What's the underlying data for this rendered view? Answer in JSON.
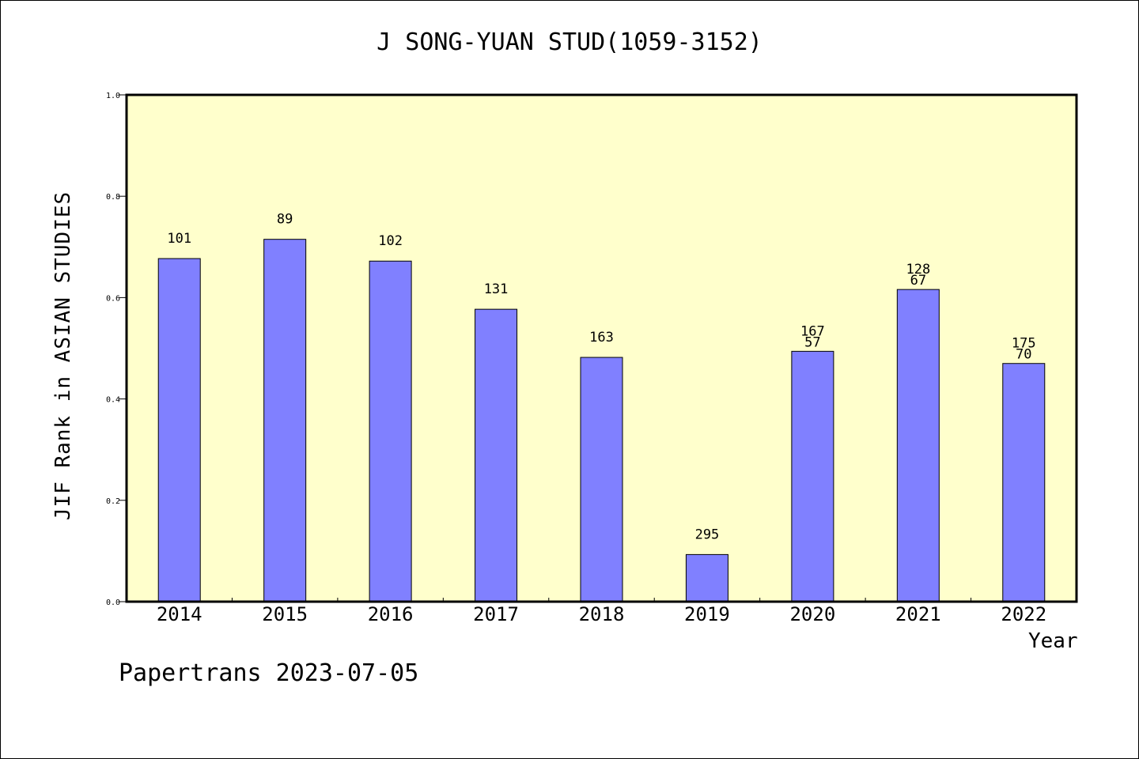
{
  "chart_data": {
    "type": "bar",
    "title": "J SONG-YUAN STUD(1059-3152)",
    "xlabel": "Year",
    "ylabel": "JIF Rank in ASIAN STUDIES",
    "ylim": [
      0.0,
      1.0
    ],
    "yticks": [
      "0.0",
      "0.2",
      "0.4",
      "0.6",
      "0.8",
      "1.0"
    ],
    "categories": [
      "2014",
      "2015",
      "2016",
      "2017",
      "2018",
      "2019",
      "2020",
      "2021",
      "2022"
    ],
    "values": [
      0.677,
      0.715,
      0.672,
      0.577,
      0.482,
      0.093,
      0.494,
      0.616,
      0.47
    ],
    "labels": [
      [
        "101"
      ],
      [
        "89"
      ],
      [
        "102"
      ],
      [
        "131"
      ],
      [
        "163"
      ],
      [
        "295"
      ],
      [
        "167",
        "57"
      ],
      [
        "128",
        "67"
      ],
      [
        "175",
        "70"
      ]
    ],
    "grid": false,
    "colors": {
      "plot_bg": "#ffffcc",
      "bar": "#8080ff"
    }
  },
  "footer": "Papertrans 2023-07-05"
}
